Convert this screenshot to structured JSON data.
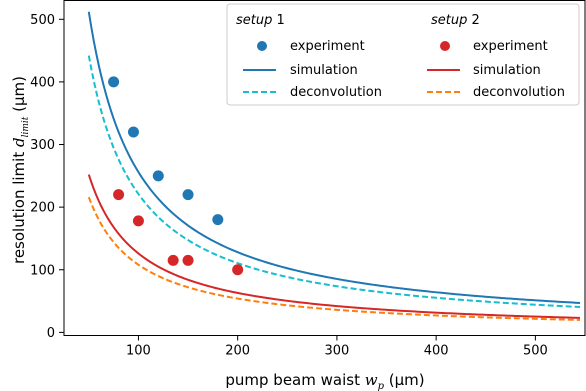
{
  "chart_data": {
    "type": "line",
    "xlabel": {
      "main": "pump beam waist ",
      "symbol": "w",
      "sub": "p",
      "unit": " (µm)"
    },
    "ylabel": {
      "main": "resolution limit ",
      "symbol": "d",
      "sub": "limit",
      "unit": " (µm)"
    },
    "xlim": [
      25,
      550
    ],
    "ylim": [
      -5,
      530
    ],
    "xticks": [
      100,
      200,
      300,
      400,
      500
    ],
    "yticks": [
      0,
      100,
      200,
      300,
      400,
      500
    ],
    "grid": false,
    "legend_placement": "top-right",
    "groups": [
      {
        "title_italic": "setup",
        "title_rest": " 1",
        "series": [
          {
            "name": "experiment",
            "kind": "scatter",
            "color": "#1f77b4",
            "x": [
              75,
              95,
              120,
              150,
              180
            ],
            "y": [
              400,
              320,
              250,
              220,
              180
            ]
          },
          {
            "name": "simulation",
            "kind": "line",
            "style": "solid",
            "color": "#1f77b4",
            "function": {
              "a": 25600,
              "power": 1.0
            }
          },
          {
            "name": "deconvolution",
            "kind": "line",
            "style": "dashed",
            "color": "#17becf",
            "function": {
              "a": 22100,
              "power": 1.0
            }
          }
        ]
      },
      {
        "title_italic": "setup",
        "title_rest": " 2",
        "series": [
          {
            "name": "experiment",
            "kind": "scatter",
            "color": "#d62728",
            "x": [
              80,
              100,
              135,
              150,
              200
            ],
            "y": [
              220,
              178,
              115,
              115,
              100
            ]
          },
          {
            "name": "simulation",
            "kind": "line",
            "style": "solid",
            "color": "#d62728",
            "function": {
              "a": 12600,
              "power": 1.0
            }
          },
          {
            "name": "deconvolution",
            "kind": "line",
            "style": "dashed",
            "color": "#ff7f0e",
            "function": {
              "a": 10800,
              "power": 1.0
            }
          }
        ]
      }
    ],
    "curve_x_range": [
      50,
      545
    ]
  }
}
